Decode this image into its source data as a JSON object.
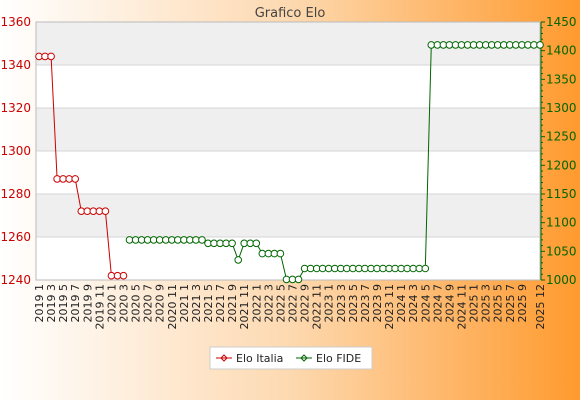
{
  "chart_data": {
    "type": "line",
    "title": "Grafico Elo",
    "xlabel": "",
    "ylabel_left": "",
    "ylabel_right": "",
    "categories": [
      "2019 1",
      "2019 2",
      "2019 3",
      "2019 4",
      "2019 5",
      "2019 6",
      "2019 7",
      "2019 8",
      "2019 9",
      "2019 10",
      "2019 11",
      "2019 12",
      "2020 1",
      "2020 2",
      "2020 3",
      "2020 4",
      "2020 5",
      "2020 6",
      "2020 7",
      "2020 8",
      "2020 9",
      "2020 10",
      "2020 11",
      "2020 12",
      "2021 1",
      "2021 2",
      "2021 3",
      "2021 4",
      "2021 5",
      "2021 6",
      "2021 7",
      "2021 8",
      "2021 9",
      "2021 10",
      "2021 11",
      "2021 12",
      "2022 1",
      "2022 2",
      "2022 3",
      "2022 4",
      "2022 5",
      "2022 6",
      "2022 7",
      "2022 8",
      "2022 9",
      "2022 10",
      "2022 11",
      "2022 12",
      "2023 1",
      "2023 2",
      "2023 3",
      "2023 4",
      "2023 5",
      "2023 6",
      "2023 7",
      "2023 8",
      "2023 9",
      "2023 10",
      "2023 11",
      "2023 12",
      "2024 1",
      "2024 2",
      "2024 3",
      "2024 4",
      "2024 5",
      "2024 6",
      "2024 7",
      "2024 8",
      "2024 9",
      "2024 10",
      "2024 11",
      "2024 12",
      "2025 1",
      "2025 2",
      "2025 3",
      "2025 4",
      "2025 5",
      "2025 6",
      "2025 7",
      "2025 8",
      "2025 9",
      "2025 10",
      "2025 11",
      "2025 12"
    ],
    "x_tick_labels": [
      "2019 1",
      "2019 3",
      "2019 5",
      "2019 7",
      "2019 9",
      "2019 11",
      "2020 1",
      "2020 3",
      "2020 5",
      "2020 7",
      "2020 9",
      "2020 11",
      "2021 1",
      "2021 3",
      "2021 5",
      "2021 7",
      "2021 9",
      "2021 11",
      "2022 1",
      "2022 3",
      "2022 5",
      "2022 7",
      "2022 9",
      "2022 11",
      "2023 1",
      "2023 3",
      "2023 5",
      "2023 7",
      "2023 9",
      "2023 11",
      "2024 1",
      "2024 3",
      "2024 5",
      "2024 7",
      "2024 9",
      "2024 11",
      "2025 1",
      "2025 3",
      "2025 5",
      "2025 7",
      "2025 9",
      "2025 12"
    ],
    "y_left": {
      "lim": [
        1240,
        1360
      ],
      "ticks": [
        1240,
        1260,
        1280,
        1300,
        1320,
        1340,
        1360
      ]
    },
    "y_right": {
      "lim": [
        1000,
        1450
      ],
      "ticks": [
        1000,
        1050,
        1100,
        1150,
        1200,
        1250,
        1300,
        1350,
        1400,
        1450
      ]
    },
    "grid": true,
    "legend_position": "bottom",
    "series": [
      {
        "name": "Elo Italia",
        "axis": "left",
        "color": "#cc0000",
        "values": [
          1344,
          1344,
          1344,
          1287,
          1287,
          1287,
          1287,
          1272,
          1272,
          1272,
          1272,
          1272,
          1242,
          1242,
          1242,
          null,
          null,
          null,
          null,
          null,
          null,
          null,
          null,
          null,
          null,
          null,
          null,
          null,
          null,
          null,
          null,
          null,
          null,
          null,
          null,
          null,
          null,
          null,
          null,
          null,
          null,
          null,
          null,
          null,
          null,
          null,
          null,
          null,
          null,
          null,
          null,
          null,
          null,
          null,
          null,
          null,
          null,
          null,
          null,
          null,
          null,
          null,
          null,
          null,
          null,
          null,
          null,
          null,
          null,
          null,
          null,
          null,
          null,
          null,
          null,
          null,
          null,
          null,
          null,
          null,
          null,
          null,
          null,
          null
        ]
      },
      {
        "name": "Elo FIDE",
        "axis": "right",
        "color": "#006600",
        "values": [
          null,
          null,
          null,
          null,
          null,
          null,
          null,
          null,
          null,
          null,
          null,
          null,
          null,
          null,
          null,
          1070,
          1070,
          1070,
          1070,
          1070,
          1070,
          1070,
          1070,
          1070,
          1070,
          1070,
          1070,
          1070,
          1064,
          1064,
          1064,
          1064,
          1064,
          1035,
          1064,
          1064,
          1064,
          1046,
          1046,
          1046,
          1046,
          1001,
          1001,
          1001,
          1020,
          1020,
          1020,
          1020,
          1020,
          1020,
          1020,
          1020,
          1020,
          1020,
          1020,
          1020,
          1020,
          1020,
          1020,
          1020,
          1020,
          1020,
          1020,
          1020,
          1020,
          1410,
          1410,
          1410,
          1410,
          1410,
          1410,
          1410,
          1410,
          1410,
          1410,
          1410,
          1410,
          1410,
          1410,
          1410,
          1410,
          1410,
          1410,
          1410
        ]
      }
    ]
  }
}
